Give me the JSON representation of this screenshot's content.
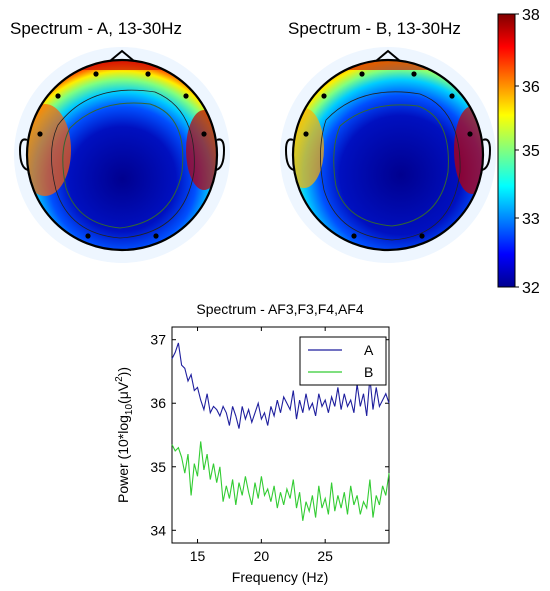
{
  "chart_data": [
    {
      "type": "heatmap",
      "subtype": "topographic-map",
      "title": "Spectrum - A, 13-30Hz",
      "colormap": "jet",
      "clim": [
        32,
        38
      ],
      "pattern": "high power along frontal rim and both temporal edges, low power centrally"
    },
    {
      "type": "heatmap",
      "subtype": "topographic-map",
      "title": "Spectrum - B, 13-30Hz",
      "colormap": "jet",
      "clim": [
        32,
        38
      ],
      "pattern": "high power along frontal rim and right temporal edge, low power centrally and posteriorly"
    },
    {
      "type": "colorbar",
      "ticks": [
        "38",
        "36",
        "35",
        "33",
        "32"
      ],
      "range": [
        32,
        38
      ]
    },
    {
      "type": "line",
      "title": "Spectrum - AF3,F3,F4,AF4",
      "xlabel": "Frequency (Hz)",
      "ylabel_parts": [
        "Power (10*log",
        "10",
        "(μV",
        "2",
        "))"
      ],
      "xlim": [
        13,
        30
      ],
      "ylim": [
        33.8,
        37.2
      ],
      "xticks": [
        "15",
        "20",
        "25"
      ],
      "yticks": [
        "34",
        "35",
        "36",
        "37"
      ],
      "legend_position": "top-right",
      "x": [
        13.0,
        13.25,
        13.5,
        13.75,
        14.0,
        14.25,
        14.5,
        14.75,
        15.0,
        15.25,
        15.5,
        15.75,
        16.0,
        16.25,
        16.5,
        16.75,
        17.0,
        17.25,
        17.5,
        17.75,
        18.0,
        18.25,
        18.5,
        18.75,
        19.0,
        19.25,
        19.5,
        19.75,
        20.0,
        20.25,
        20.5,
        20.75,
        21.0,
        21.25,
        21.5,
        21.75,
        22.0,
        22.25,
        22.5,
        22.75,
        23.0,
        23.25,
        23.5,
        23.75,
        24.0,
        24.25,
        24.5,
        24.75,
        25.0,
        25.25,
        25.5,
        25.75,
        26.0,
        26.25,
        26.5,
        26.75,
        27.0,
        27.25,
        27.5,
        27.75,
        28.0,
        28.25,
        28.5,
        28.75,
        29.0,
        29.25,
        29.5,
        29.75,
        30.0
      ],
      "series": [
        {
          "name": "A",
          "color": "#1f1f9e",
          "values": [
            36.7,
            36.8,
            36.95,
            36.6,
            36.55,
            36.35,
            36.45,
            36.2,
            36.25,
            36.05,
            35.9,
            36.15,
            35.85,
            35.95,
            35.9,
            35.8,
            35.95,
            35.85,
            35.65,
            35.95,
            35.8,
            35.6,
            35.95,
            35.75,
            35.9,
            35.7,
            35.85,
            36.0,
            35.75,
            35.85,
            35.65,
            35.95,
            35.8,
            36.05,
            35.85,
            36.1,
            36.0,
            35.9,
            36.2,
            35.75,
            36.05,
            35.85,
            36.15,
            35.9,
            36.0,
            35.8,
            36.15,
            35.95,
            36.05,
            35.85,
            36.1,
            35.95,
            36.25,
            35.9,
            36.15,
            35.95,
            36.05,
            35.85,
            36.3,
            35.95,
            36.15,
            35.8,
            36.4,
            35.9,
            36.25,
            35.95,
            36.05,
            36.15,
            36.0
          ]
        },
        {
          "name": "B",
          "color": "#33cc33",
          "values": [
            35.35,
            35.25,
            35.3,
            35.15,
            34.9,
            35.2,
            34.55,
            35.05,
            34.85,
            35.4,
            34.95,
            35.2,
            34.8,
            35.05,
            34.75,
            35.0,
            34.45,
            34.7,
            34.5,
            34.8,
            34.4,
            34.75,
            34.55,
            34.85,
            34.6,
            34.4,
            34.75,
            34.5,
            34.85,
            34.55,
            34.65,
            34.45,
            34.7,
            34.35,
            34.6,
            34.4,
            34.65,
            34.5,
            34.8,
            34.35,
            34.6,
            34.15,
            34.45,
            34.3,
            34.55,
            34.2,
            34.7,
            34.35,
            34.5,
            34.25,
            34.75,
            34.3,
            34.55,
            34.35,
            34.6,
            34.25,
            34.7,
            34.4,
            34.55,
            34.25,
            34.45,
            34.35,
            34.8,
            34.2,
            34.55,
            34.4,
            34.7,
            34.55,
            34.9
          ]
        }
      ]
    }
  ]
}
